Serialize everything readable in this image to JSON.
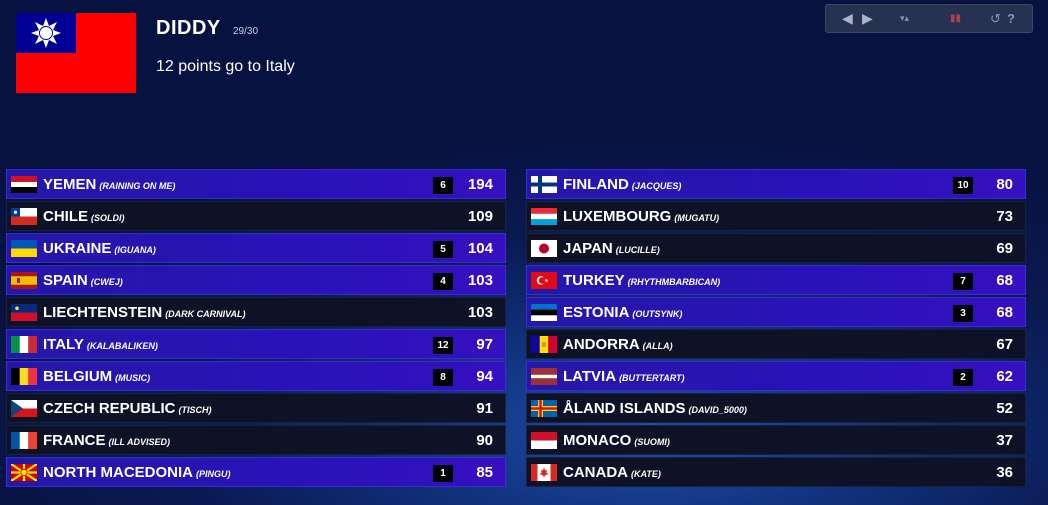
{
  "voter": {
    "name": "DIDDY",
    "counter": "29/30",
    "message": "12 points go to Italy",
    "flag_icon": "taiwan-flag"
  },
  "toolbar": {
    "prev_icon": "◀",
    "next_icon": "▶",
    "sort_icon": "▾▴",
    "flag_icon": "▮▮",
    "reset_icon": "↺",
    "help_icon": "?"
  },
  "colors": {
    "scored_row": "#2a12b8",
    "unscored_row": "#0d1226",
    "background": "#0a1a52"
  },
  "scoreboard": {
    "left": [
      {
        "country": "YEMEN",
        "artist": "(RAINING ON ME)",
        "points": "6",
        "total": "194",
        "flag": "yemen"
      },
      {
        "country": "CHILE",
        "artist": "(SOLDI)",
        "points": "",
        "total": "109",
        "flag": "chile"
      },
      {
        "country": "UKRAINE",
        "artist": "(IGUANA)",
        "points": "5",
        "total": "104",
        "flag": "ukraine"
      },
      {
        "country": "SPAIN",
        "artist": "(CWEJ)",
        "points": "4",
        "total": "103",
        "flag": "spain"
      },
      {
        "country": "LIECHTENSTEIN",
        "artist": "(DARK CARNIVAL)",
        "points": "",
        "total": "103",
        "flag": "liechtenstein"
      },
      {
        "country": "ITALY",
        "artist": "(KALABALIKEN)",
        "points": "12",
        "total": "97",
        "flag": "italy"
      },
      {
        "country": "BELGIUM",
        "artist": "(MUSIC)",
        "points": "8",
        "total": "94",
        "flag": "belgium"
      },
      {
        "country": "CZECH REPUBLIC",
        "artist": "(TISCH)",
        "points": "",
        "total": "91",
        "flag": "czech"
      },
      {
        "country": "FRANCE",
        "artist": "(ILL ADVISED)",
        "points": "",
        "total": "90",
        "flag": "france"
      },
      {
        "country": "NORTH MACEDONIA",
        "artist": "(PINGU)",
        "points": "1",
        "total": "85",
        "flag": "macedonia"
      }
    ],
    "right": [
      {
        "country": "FINLAND",
        "artist": "(JACQUES)",
        "points": "10",
        "total": "80",
        "flag": "finland"
      },
      {
        "country": "LUXEMBOURG",
        "artist": "(MUGATU)",
        "points": "",
        "total": "73",
        "flag": "luxembourg"
      },
      {
        "country": "JAPAN",
        "artist": "(LUCILLE)",
        "points": "",
        "total": "69",
        "flag": "japan"
      },
      {
        "country": "TURKEY",
        "artist": "(RHYTHMBARBICAN)",
        "points": "7",
        "total": "68",
        "flag": "turkey"
      },
      {
        "country": "ESTONIA",
        "artist": "(OUTSYNK)",
        "points": "3",
        "total": "68",
        "flag": "estonia"
      },
      {
        "country": "ANDORRA",
        "artist": "(ALLA)",
        "points": "",
        "total": "67",
        "flag": "andorra"
      },
      {
        "country": "LATVIA",
        "artist": "(BUTTERTART)",
        "points": "2",
        "total": "62",
        "flag": "latvia"
      },
      {
        "country": "ÅLAND ISLANDS",
        "artist": "(DAVID_5000)",
        "points": "",
        "total": "52",
        "flag": "aland"
      },
      {
        "country": "MONACO",
        "artist": "(SUOMI)",
        "points": "",
        "total": "37",
        "flag": "monaco"
      },
      {
        "country": "CANADA",
        "artist": "(KATE)",
        "points": "",
        "total": "36",
        "flag": "canada"
      }
    ]
  }
}
